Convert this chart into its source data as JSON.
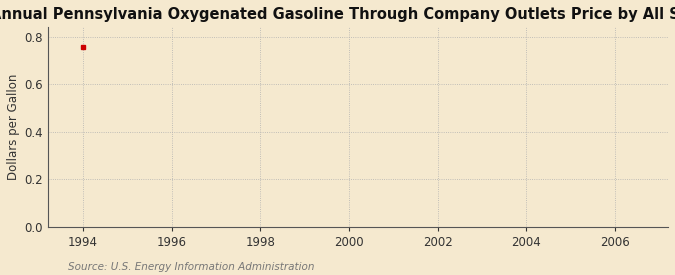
{
  "title": "Annual Pennsylvania Oxygenated Gasoline Through Company Outlets Price by All Sellers",
  "ylabel": "Dollars per Gallon",
  "source_text": "Source: U.S. Energy Information Administration",
  "background_color": "#f5e9cf",
  "plot_bg_color": "#f5e9cf",
  "data_x": [
    1994
  ],
  "data_y": [
    0.757
  ],
  "data_color": "#cc0000",
  "xlim": [
    1993.2,
    2007.2
  ],
  "ylim": [
    0.0,
    0.84
  ],
  "xticks": [
    1994,
    1996,
    1998,
    2000,
    2002,
    2004,
    2006
  ],
  "yticks": [
    0.0,
    0.2,
    0.4,
    0.6,
    0.8
  ],
  "grid_color": "#b0b0b0",
  "title_fontsize": 10.5,
  "label_fontsize": 8.5,
  "tick_fontsize": 8.5,
  "source_fontsize": 7.5
}
